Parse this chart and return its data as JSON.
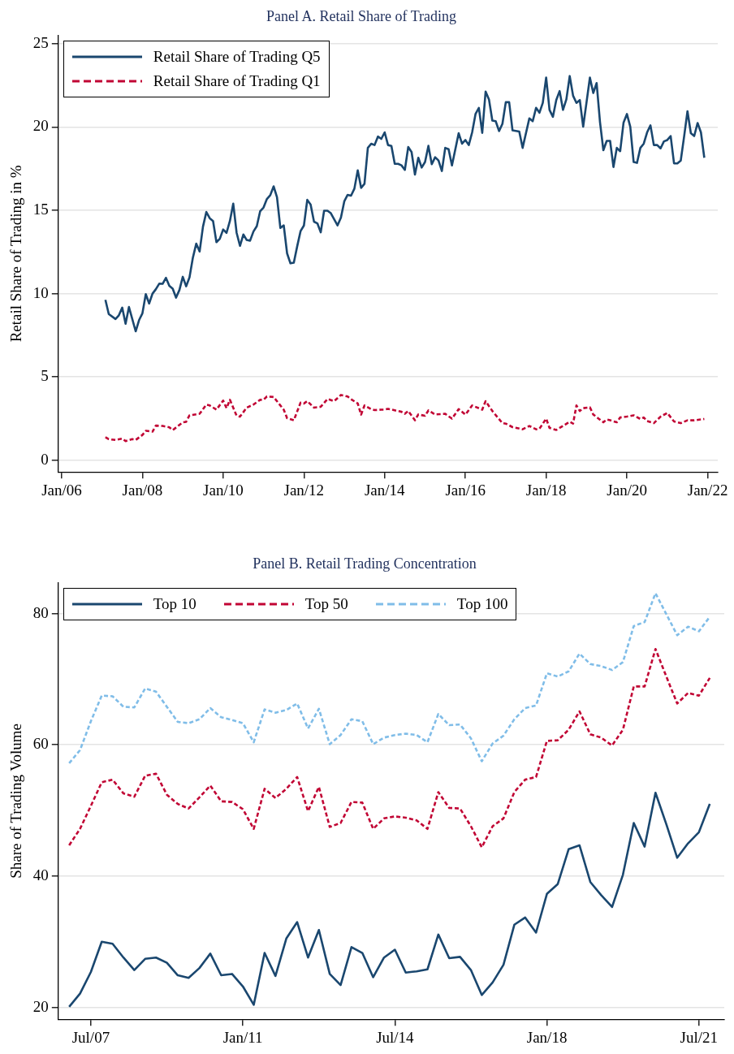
{
  "chart_data": [
    {
      "type": "line",
      "title": "Panel A. Retail Share of Trading",
      "ylabel": "Retail Share of Trading in %",
      "xlim": [
        "2005-12",
        "2022-04"
      ],
      "ylim": [
        -0.7,
        25.5
      ],
      "xticks": [
        {
          "value": "2006-01",
          "label": "Jan/06"
        },
        {
          "value": "2008-01",
          "label": "Jan/08"
        },
        {
          "value": "2010-01",
          "label": "Jan/10"
        },
        {
          "value": "2012-01",
          "label": "Jan/12"
        },
        {
          "value": "2014-01",
          "label": "Jan/14"
        },
        {
          "value": "2016-01",
          "label": "Jan/16"
        },
        {
          "value": "2018-01",
          "label": "Jan/18"
        },
        {
          "value": "2020-01",
          "label": "Jan/20"
        },
        {
          "value": "2022-01",
          "label": "Jan/22"
        }
      ],
      "yticks": [
        0,
        5,
        10,
        15,
        20,
        25
      ],
      "grid": "y",
      "legend": "top left",
      "series": [
        {
          "name": "Retail Share of Trading Q5",
          "color": "#1a476f",
          "line_style": "solid",
          "x": [
            "2007-02",
            "2007-03",
            "2007-05",
            "2007-06",
            "2007-07",
            "2007-08",
            "2007-09",
            "2007-11",
            "2007-12",
            "2008-01",
            "2008-02",
            "2008-03",
            "2008-04",
            "2008-05",
            "2008-06",
            "2008-07",
            "2008-08",
            "2008-09",
            "2008-10",
            "2008-11",
            "2008-12",
            "2009-01",
            "2009-02",
            "2009-03",
            "2009-04",
            "2009-05",
            "2009-06",
            "2009-07",
            "2009-08",
            "2009-09",
            "2009-10",
            "2009-11",
            "2009-12",
            "2010-01",
            "2010-02",
            "2010-03",
            "2010-04",
            "2010-05",
            "2010-06",
            "2010-07",
            "2010-08",
            "2010-09",
            "2010-10",
            "2010-11",
            "2010-12",
            "2011-01",
            "2011-02",
            "2011-03",
            "2011-04",
            "2011-05",
            "2011-06",
            "2011-07",
            "2011-08",
            "2011-09",
            "2011-10",
            "2011-11",
            "2011-12",
            "2012-01",
            "2012-02",
            "2012-03",
            "2012-04",
            "2012-05",
            "2012-06",
            "2012-07",
            "2012-08",
            "2012-09",
            "2012-11",
            "2012-12",
            "2013-01",
            "2013-02",
            "2013-03",
            "2013-04",
            "2013-05",
            "2013-06",
            "2013-07",
            "2013-08",
            "2013-09",
            "2013-10",
            "2013-11",
            "2013-12",
            "2014-01",
            "2014-02",
            "2014-03",
            "2014-04",
            "2014-05",
            "2014-06",
            "2014-07",
            "2014-08",
            "2014-09",
            "2014-10",
            "2014-11",
            "2014-12",
            "2015-01",
            "2015-02",
            "2015-03",
            "2015-04",
            "2015-05",
            "2015-06",
            "2015-07",
            "2015-08",
            "2015-09",
            "2015-11",
            "2015-12",
            "2016-01",
            "2016-02",
            "2016-03",
            "2016-04",
            "2016-05",
            "2016-06",
            "2016-07",
            "2016-08",
            "2016-09",
            "2016-10",
            "2016-11",
            "2016-12",
            "2017-01",
            "2017-02",
            "2017-03",
            "2017-05",
            "2017-06",
            "2017-08",
            "2017-09",
            "2017-10",
            "2017-11",
            "2017-12",
            "2018-01",
            "2018-02",
            "2018-03",
            "2018-04",
            "2018-05",
            "2018-06",
            "2018-07",
            "2018-08",
            "2018-09",
            "2018-10",
            "2018-11",
            "2018-12",
            "2019-01",
            "2019-02",
            "2019-03",
            "2019-04",
            "2019-05",
            "2019-06",
            "2019-07",
            "2019-08",
            "2019-09",
            "2019-10",
            "2019-11",
            "2019-12",
            "2020-01",
            "2020-02",
            "2020-03",
            "2020-04",
            "2020-05",
            "2020-06",
            "2020-07",
            "2020-08",
            "2020-09",
            "2020-10",
            "2020-11",
            "2020-12",
            "2021-01",
            "2021-02",
            "2021-03",
            "2021-04",
            "2021-05",
            "2021-06",
            "2021-07",
            "2021-08",
            "2021-09",
            "2021-10",
            "2021-11",
            "2021-12"
          ],
          "values": [
            9.63,
            8.78,
            8.48,
            8.7,
            9.16,
            8.19,
            9.2,
            7.74,
            8.41,
            8.82,
            9.97,
            9.41,
            10.0,
            10.27,
            10.6,
            10.59,
            10.95,
            10.47,
            10.3,
            9.76,
            10.22,
            11.01,
            10.44,
            10.98,
            12.16,
            13.0,
            12.53,
            14.02,
            14.9,
            14.53,
            14.36,
            13.09,
            13.29,
            13.85,
            13.65,
            14.36,
            15.4,
            13.65,
            12.87,
            13.55,
            13.22,
            13.18,
            13.73,
            14.05,
            14.95,
            15.17,
            15.68,
            15.91,
            16.44,
            15.79,
            13.94,
            14.1,
            12.42,
            11.82,
            11.86,
            12.84,
            13.75,
            14.09,
            15.63,
            15.34,
            14.32,
            14.22,
            13.68,
            14.98,
            14.98,
            14.83,
            14.1,
            14.56,
            15.54,
            15.93,
            15.88,
            16.3,
            17.4,
            16.35,
            16.59,
            18.75,
            19.0,
            18.92,
            19.43,
            19.29,
            19.68,
            18.92,
            18.87,
            17.79,
            17.79,
            17.7,
            17.43,
            18.8,
            18.5,
            17.15,
            18.16,
            17.57,
            17.9,
            18.87,
            17.77,
            18.19,
            17.99,
            17.36,
            18.75,
            18.67,
            17.7,
            19.63,
            19.0,
            19.22,
            18.92,
            19.68,
            20.78,
            21.15,
            19.65,
            22.13,
            21.66,
            20.39,
            20.35,
            19.76,
            20.19,
            21.49,
            21.49,
            19.8,
            19.73,
            18.75,
            20.52,
            20.35,
            21.15,
            20.86,
            21.45,
            22.97,
            21.03,
            20.61,
            21.62,
            22.16,
            21.03,
            21.66,
            23.06,
            21.88,
            21.45,
            21.62,
            20.02,
            21.49,
            22.97,
            22.04,
            22.64,
            20.3,
            18.61,
            19.17,
            19.17,
            17.6,
            18.75,
            18.55,
            20.27,
            20.78,
            20.02,
            17.9,
            17.85,
            18.75,
            19.0,
            19.68,
            20.1,
            18.92,
            18.92,
            18.72,
            19.14,
            19.22,
            19.46,
            17.82,
            17.82,
            17.99,
            19.43,
            20.95,
            19.63,
            19.46,
            20.24,
            19.68,
            18.16
          ]
        },
        {
          "name": "Retail Share of Trading Q1",
          "color": "#c10534",
          "line_style": "dashed",
          "x": [
            "2007-02",
            "2007-03",
            "2007-05",
            "2007-07",
            "2007-08",
            "2007-10",
            "2007-11",
            "2008-01",
            "2008-02",
            "2008-04",
            "2008-05",
            "2008-07",
            "2008-09",
            "2008-10",
            "2009-01",
            "2009-02",
            "2009-03",
            "2009-06",
            "2009-08",
            "2009-09",
            "2009-11",
            "2010-01",
            "2010-02",
            "2010-03",
            "2010-05",
            "2010-06",
            "2010-08",
            "2010-10",
            "2010-12",
            "2011-01",
            "2011-02",
            "2011-04",
            "2011-07",
            "2011-08",
            "2011-10",
            "2011-12",
            "2012-01",
            "2012-02",
            "2012-04",
            "2012-06",
            "2012-08",
            "2012-10",
            "2012-12",
            "2013-02",
            "2013-03",
            "2013-05",
            "2013-06",
            "2013-07",
            "2013-09",
            "2013-10",
            "2013-12",
            "2014-01",
            "2014-02",
            "2014-06",
            "2014-07",
            "2014-08",
            "2014-10",
            "2014-11",
            "2015-01",
            "2015-02",
            "2015-04",
            "2015-07",
            "2015-09",
            "2015-11",
            "2016-01",
            "2016-03",
            "2016-06",
            "2016-07",
            "2016-09",
            "2016-12",
            "2017-01",
            "2017-03",
            "2017-06",
            "2017-08",
            "2017-10",
            "2017-11",
            "2018-01",
            "2018-02",
            "2018-04",
            "2018-06",
            "2018-08",
            "2018-09",
            "2018-10",
            "2018-11",
            "2018-12",
            "2019-02",
            "2019-03",
            "2019-06",
            "2019-07",
            "2019-08",
            "2019-10",
            "2019-11",
            "2020-01",
            "2020-03",
            "2020-05",
            "2020-06",
            "2020-07",
            "2020-09",
            "2020-11",
            "2021-01",
            "2021-03",
            "2021-05",
            "2021-07",
            "2021-09",
            "2021-12"
          ],
          "values": [
            1.39,
            1.27,
            1.22,
            1.3,
            1.15,
            1.27,
            1.22,
            1.52,
            1.77,
            1.72,
            2.08,
            2.06,
            1.98,
            1.81,
            2.28,
            2.31,
            2.7,
            2.79,
            3.34,
            3.29,
            3.04,
            3.58,
            3.13,
            3.63,
            2.67,
            2.62,
            3.16,
            3.34,
            3.63,
            3.63,
            3.83,
            3.8,
            3.04,
            2.53,
            2.4,
            3.46,
            3.41,
            3.55,
            3.16,
            3.21,
            3.68,
            3.55,
            3.92,
            3.83,
            3.67,
            3.41,
            2.74,
            3.29,
            3.07,
            3.01,
            3.04,
            3.04,
            3.09,
            2.91,
            2.79,
            2.96,
            2.4,
            2.75,
            2.67,
            2.99,
            2.75,
            2.79,
            2.5,
            3.07,
            2.74,
            3.29,
            3.04,
            3.55,
            2.96,
            2.23,
            2.2,
            1.99,
            1.86,
            2.06,
            1.86,
            1.89,
            2.5,
            1.94,
            1.82,
            2.06,
            2.31,
            2.2,
            3.29,
            2.96,
            3.13,
            3.18,
            2.75,
            2.28,
            2.45,
            2.4,
            2.28,
            2.57,
            2.62,
            2.7,
            2.48,
            2.57,
            2.36,
            2.23,
            2.62,
            2.84,
            2.33,
            2.23,
            2.4,
            2.4,
            2.48
          ]
        }
      ]
    },
    {
      "type": "line",
      "title": "Panel B. Retail Trading Concentration",
      "ylabel": "Share of Trading Volume",
      "xlim": [
        "2006-10",
        "2022-02"
      ],
      "ylim": [
        18.2,
        84.7
      ],
      "xticks": [
        {
          "value": "2007-07",
          "label": "Jul/07"
        },
        {
          "value": "2011-01",
          "label": "Jan/11"
        },
        {
          "value": "2014-07",
          "label": "Jul/14"
        },
        {
          "value": "2018-01",
          "label": "Jan/18"
        },
        {
          "value": "2021-07",
          "label": "Jul/21"
        }
      ],
      "yticks": [
        20,
        40,
        60,
        80
      ],
      "grid": "y",
      "legend": "top left",
      "x": [
        "2007-01",
        "2007-04",
        "2007-07",
        "2007-10",
        "2008-01",
        "2008-04",
        "2008-07",
        "2008-10",
        "2009-01",
        "2009-04",
        "2009-07",
        "2009-10",
        "2010-01",
        "2010-04",
        "2010-07",
        "2010-10",
        "2011-01",
        "2011-04",
        "2011-07",
        "2011-10",
        "2012-01",
        "2012-04",
        "2012-07",
        "2012-10",
        "2013-01",
        "2013-04",
        "2013-07",
        "2013-10",
        "2014-01",
        "2014-04",
        "2014-07",
        "2014-10",
        "2015-01",
        "2015-04",
        "2015-07",
        "2015-10",
        "2016-01",
        "2016-04",
        "2016-07",
        "2016-10",
        "2017-01",
        "2017-04",
        "2017-07",
        "2017-10",
        "2018-01",
        "2018-04",
        "2018-07",
        "2018-10",
        "2019-01",
        "2019-04",
        "2019-07",
        "2019-10",
        "2020-01",
        "2020-04",
        "2020-07",
        "2020-10",
        "2021-01",
        "2021-04",
        "2021-07",
        "2021-10"
      ],
      "series": [
        {
          "name": "Top 10",
          "color": "#1a476f",
          "line_style": "solid",
          "values": [
            20.1,
            22.1,
            25.4,
            30.0,
            29.7,
            27.6,
            25.7,
            27.4,
            27.6,
            26.8,
            24.9,
            24.5,
            26.0,
            28.2,
            24.9,
            25.1,
            23.2,
            20.4,
            28.3,
            24.8,
            30.5,
            33.0,
            27.6,
            31.8,
            25.1,
            23.4,
            29.2,
            28.3,
            24.6,
            27.6,
            28.8,
            25.3,
            25.5,
            25.8,
            31.1,
            27.5,
            27.7,
            25.7,
            21.9,
            23.8,
            26.5,
            32.6,
            33.7,
            31.4,
            37.3,
            38.8,
            44.1,
            44.7,
            39.1,
            37.1,
            35.3,
            40.2,
            48.1,
            44.5,
            52.7,
            47.9,
            42.8,
            45.0,
            46.7,
            51.0
          ]
        },
        {
          "name": "Top 50",
          "color": "#c10534",
          "line_style": "dashed",
          "values": [
            44.7,
            47.2,
            50.7,
            54.3,
            54.7,
            52.6,
            52.1,
            55.3,
            55.6,
            52.4,
            51.0,
            50.3,
            52.0,
            53.8,
            51.4,
            51.3,
            50.2,
            47.2,
            53.3,
            51.9,
            53.3,
            55.1,
            49.9,
            53.6,
            47.5,
            48.1,
            51.3,
            51.2,
            47.2,
            48.8,
            49.1,
            48.9,
            48.5,
            47.2,
            52.8,
            50.4,
            50.3,
            47.6,
            44.4,
            47.6,
            48.8,
            52.8,
            54.7,
            55.1,
            60.6,
            60.7,
            62.3,
            65.1,
            61.6,
            61.1,
            59.9,
            62.3,
            68.9,
            68.9,
            74.6,
            70.4,
            66.3,
            67.9,
            67.5,
            70.2
          ]
        },
        {
          "name": "Top 100",
          "color": "#80bde8",
          "line_style": "dashed",
          "values": [
            57.2,
            59.2,
            63.6,
            67.5,
            67.4,
            65.8,
            65.7,
            68.6,
            68.1,
            65.8,
            63.5,
            63.3,
            63.9,
            65.6,
            64.2,
            63.8,
            63.3,
            60.4,
            65.4,
            64.9,
            65.3,
            66.3,
            62.5,
            65.5,
            60.1,
            61.5,
            63.9,
            63.6,
            60.1,
            61.1,
            61.5,
            61.7,
            61.5,
            60.4,
            64.7,
            63.0,
            63.1,
            61.0,
            57.5,
            60.2,
            61.4,
            63.9,
            65.6,
            66.0,
            70.9,
            70.4,
            71.2,
            73.9,
            72.3,
            72.0,
            71.4,
            72.6,
            78.1,
            78.7,
            83.1,
            79.9,
            76.7,
            78.0,
            77.3,
            79.5
          ]
        }
      ]
    }
  ]
}
